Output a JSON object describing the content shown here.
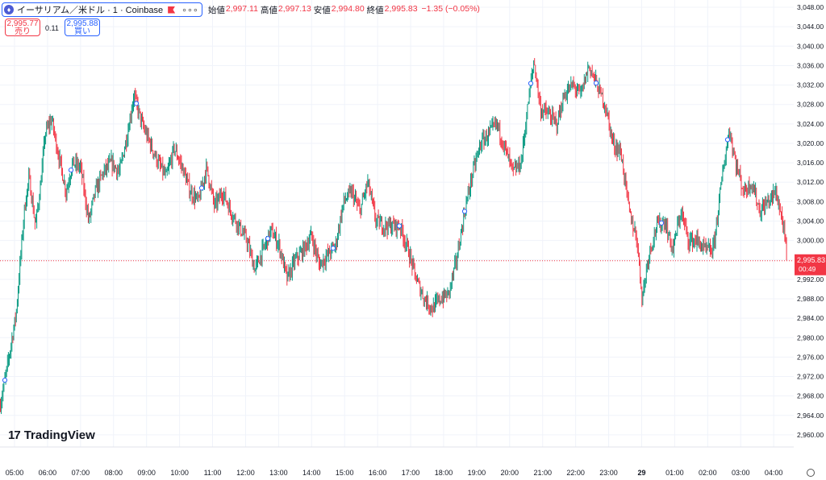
{
  "header": {
    "coin_icon": "ethereum-icon",
    "symbol": "イーサリアム／米ドル · 1 · Coinbase",
    "more": "∘∘∘",
    "ohlc": [
      {
        "label": "始値",
        "value": "2,997.11"
      },
      {
        "label": "高値",
        "value": "2,997.13"
      },
      {
        "label": "安値",
        "value": "2,994.80"
      },
      {
        "label": "終値",
        "value": "2,995.83"
      }
    ],
    "change": "−1.35 (−0.05%)"
  },
  "trade": {
    "sell_price": "2,995.77",
    "sell_label": "売り",
    "spread": "0.11",
    "buy_price": "2,995.88",
    "buy_label": "買い"
  },
  "logo": {
    "mark": "17",
    "text": "TradingView"
  },
  "colors": {
    "up": "#089981",
    "down": "#f23645",
    "grid": "#f0f3fa",
    "text": "#131722",
    "accent": "#2962ff"
  },
  "chart_data": {
    "type": "candlestick",
    "y_ticks": [
      "2,960.00",
      "2,964.00",
      "2,968.00",
      "2,972.00",
      "2,976.00",
      "2,980.00",
      "2,984.00",
      "2,988.00",
      "2,992.00",
      "2,996.00",
      "3,000.00",
      "3,004.00",
      "3,008.00",
      "3,012.00",
      "3,016.00",
      "3,020.00",
      "3,024.00",
      "3,028.00",
      "3,032.00",
      "3,036.00",
      "3,040.00",
      "3,044.00",
      "3,048.00"
    ],
    "y_tick_values": [
      2960,
      2964,
      2968,
      2972,
      2976,
      2980,
      2984,
      2988,
      2992,
      2996,
      3000,
      3004,
      3008,
      3012,
      3016,
      3020,
      3024,
      3028,
      3032,
      3036,
      3040,
      3044,
      3048
    ],
    "ylim": [
      2957.5,
      3049.5
    ],
    "x_ticks": [
      "05:00",
      "06:00",
      "07:00",
      "08:00",
      "09:00",
      "10:00",
      "11:00",
      "12:00",
      "13:00",
      "14:00",
      "15:00",
      "16:00",
      "17:00",
      "18:00",
      "19:00",
      "20:00",
      "21:00",
      "22:00",
      "23:00",
      "29",
      "01:00",
      "02:00",
      "03:00",
      "04:00"
    ],
    "x_tick_bold": "29",
    "last_price": "2,995.83",
    "last_price_value": 2995.83,
    "countdown": "00:49",
    "price_path": [
      [
        0,
        2966
      ],
      [
        8,
        2973
      ],
      [
        20,
        2985
      ],
      [
        30,
        3006
      ],
      [
        36,
        3013
      ],
      [
        44,
        3003
      ],
      [
        50,
        3011
      ],
      [
        56,
        3022
      ],
      [
        64,
        3025
      ],
      [
        72,
        3018
      ],
      [
        82,
        3010
      ],
      [
        90,
        3016
      ],
      [
        100,
        3015
      ],
      [
        110,
        3004
      ],
      [
        118,
        3010
      ],
      [
        128,
        3014
      ],
      [
        138,
        3016
      ],
      [
        148,
        3014
      ],
      [
        158,
        3022
      ],
      [
        166,
        3030
      ],
      [
        176,
        3024
      ],
      [
        186,
        3020
      ],
      [
        196,
        3016
      ],
      [
        206,
        3013
      ],
      [
        216,
        3019
      ],
      [
        226,
        3015
      ],
      [
        236,
        3010
      ],
      [
        246,
        3008
      ],
      [
        256,
        3015
      ],
      [
        266,
        3007
      ],
      [
        276,
        3010
      ],
      [
        286,
        3006
      ],
      [
        296,
        3003
      ],
      [
        306,
        3000
      ],
      [
        316,
        2994
      ],
      [
        326,
        2998
      ],
      [
        336,
        3002
      ],
      [
        346,
        2999
      ],
      [
        356,
        2992
      ],
      [
        366,
        2996
      ],
      [
        376,
        2998
      ],
      [
        386,
        3001
      ],
      [
        396,
        2995
      ],
      [
        406,
        2997
      ],
      [
        416,
        2999
      ],
      [
        426,
        3008
      ],
      [
        436,
        3010
      ],
      [
        446,
        3006
      ],
      [
        456,
        3012
      ],
      [
        466,
        3004
      ],
      [
        476,
        3003
      ],
      [
        486,
        3003
      ],
      [
        496,
        3003
      ],
      [
        506,
        2998
      ],
      [
        516,
        2992
      ],
      [
        526,
        2988
      ],
      [
        536,
        2986
      ],
      [
        546,
        2988
      ],
      [
        556,
        2989
      ],
      [
        566,
        2996
      ],
      [
        576,
        3006
      ],
      [
        586,
        3014
      ],
      [
        596,
        3020
      ],
      [
        606,
        3022
      ],
      [
        616,
        3024
      ],
      [
        626,
        3019
      ],
      [
        636,
        3014
      ],
      [
        646,
        3016
      ],
      [
        656,
        3030
      ],
      [
        662,
        3037
      ],
      [
        670,
        3027
      ],
      [
        680,
        3026
      ],
      [
        690,
        3024
      ],
      [
        700,
        3030
      ],
      [
        710,
        3032
      ],
      [
        720,
        3030
      ],
      [
        730,
        3036
      ],
      [
        740,
        3032
      ],
      [
        750,
        3028
      ],
      [
        760,
        3020
      ],
      [
        770,
        3018
      ],
      [
        780,
        3006
      ],
      [
        790,
        3000
      ],
      [
        796,
        2988
      ],
      [
        804,
        2997
      ],
      [
        814,
        3003
      ],
      [
        824,
        3004
      ],
      [
        834,
        2998
      ],
      [
        844,
        3006
      ],
      [
        854,
        3000
      ],
      [
        864,
        3000
      ],
      [
        874,
        2998
      ],
      [
        884,
        2998
      ],
      [
        890,
        3006
      ],
      [
        896,
        3014
      ],
      [
        904,
        3023
      ],
      [
        912,
        3016
      ],
      [
        922,
        3010
      ],
      [
        932,
        3012
      ],
      [
        942,
        3006
      ],
      [
        952,
        3008
      ],
      [
        962,
        3010
      ],
      [
        970,
        3004
      ],
      [
        976,
        2996
      ]
    ]
  }
}
